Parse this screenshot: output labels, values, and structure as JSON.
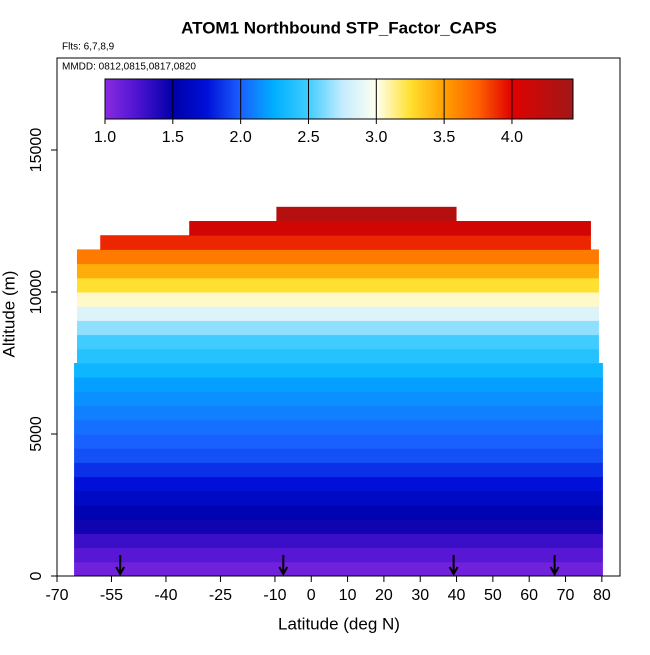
{
  "chart_data": {
    "type": "curtain",
    "title": "ATOM1 Northbound STP_Factor_CAPS",
    "subtitle": "Flts: 6,7,8,9",
    "annotation": "MMDD: 0812,0815,0817,0820",
    "x_label": "Latitude (deg N)",
    "y_label": "Altitude (m)",
    "xlim": [
      -70,
      85
    ],
    "ylim": [
      0,
      18240
    ],
    "xticks": [
      -70,
      -55,
      -40,
      -25,
      -10,
      0,
      10,
      20,
      30,
      40,
      50,
      60,
      70,
      80
    ],
    "yticks": [
      0,
      5000,
      10000,
      15000
    ],
    "bin_edges": [
      0,
      500,
      1000,
      1500,
      2000,
      2500,
      3000,
      3500,
      4000,
      4500,
      5000,
      5500,
      6000,
      6500,
      7000,
      7500,
      8000,
      8500,
      9000,
      9500,
      10000,
      10500,
      11000,
      11500,
      12000,
      12500,
      13000
    ],
    "values": [
      1.1,
      1.2,
      1.3,
      1.45,
      1.55,
      1.65,
      1.75,
      1.85,
      1.95,
      2.0,
      2.05,
      2.1,
      2.15,
      2.2,
      2.3,
      2.4,
      2.5,
      2.65,
      2.85,
      3.05,
      3.25,
      3.45,
      3.65,
      3.9,
      4.1,
      4.3
    ],
    "x_start": [
      -65.3,
      -65.3,
      -65.3,
      -65.3,
      -65.3,
      -65.3,
      -65.3,
      -65.3,
      -65.3,
      -65.3,
      -65.3,
      -65.3,
      -65.3,
      -65.3,
      -65.3,
      -64.5,
      -64.5,
      -64.5,
      -64.5,
      -64.5,
      -64.5,
      -64.5,
      -64.5,
      -58.1,
      -33.6,
      -9.6
    ],
    "x_end": [
      80.3,
      80.3,
      80.3,
      80.3,
      80.3,
      80.3,
      80.3,
      80.3,
      80.3,
      80.3,
      80.3,
      80.3,
      80.3,
      80.3,
      80.3,
      79.2,
      79.2,
      79.2,
      79.2,
      79.2,
      79.2,
      79.2,
      79.2,
      77,
      77,
      40
    ],
    "arrows": [
      -52.6,
      -7.7,
      39.2,
      67
    ],
    "clim": [
      1.0,
      4.45
    ],
    "colorscale": [
      [
        1.0,
        "#8a2be2"
      ],
      [
        1.25,
        "#4a12d0"
      ],
      [
        1.5,
        "#0000a8"
      ],
      [
        1.75,
        "#0010d8"
      ],
      [
        2.0,
        "#1a60ff"
      ],
      [
        2.25,
        "#00b0ff"
      ],
      [
        2.5,
        "#40ccff"
      ],
      [
        2.75,
        "#c4ecff"
      ],
      [
        3.0,
        "#fffff0"
      ],
      [
        3.25,
        "#ffe030"
      ],
      [
        3.5,
        "#ffa000"
      ],
      [
        3.75,
        "#ff6000"
      ],
      [
        4.0,
        "#e00000"
      ],
      [
        4.45,
        "#a01818"
      ]
    ],
    "colorbar_ticks": [
      {
        "value": 1.0,
        "label": "1.0"
      },
      {
        "value": 1.5,
        "label": "1.5"
      },
      {
        "value": 2.0,
        "label": "2.0"
      },
      {
        "value": 2.5,
        "label": "2.5"
      },
      {
        "value": 3.0,
        "label": "3.0"
      },
      {
        "value": 3.5,
        "label": "3.5"
      },
      {
        "value": 4.0,
        "label": "4.0"
      }
    ]
  }
}
